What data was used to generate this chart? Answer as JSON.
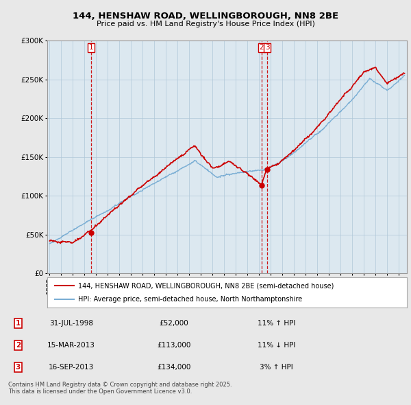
{
  "title1": "144, HENSHAW ROAD, WELLINGBOROUGH, NN8 2BE",
  "title2": "Price paid vs. HM Land Registry's House Price Index (HPI)",
  "ylim": [
    0,
    300000
  ],
  "yticks": [
    0,
    50000,
    100000,
    150000,
    200000,
    250000,
    300000
  ],
  "background_color": "#e8e8e8",
  "plot_bg_color": "#dce8f0",
  "legend_label_red": "144, HENSHAW ROAD, WELLINGBOROUGH, NN8 2BE (semi-detached house)",
  "legend_label_blue": "HPI: Average price, semi-detached house, North Northamptonshire",
  "transactions": [
    {
      "num": 1,
      "date": "31-JUL-1998",
      "price": "£52,000",
      "hpi": "11% ↑ HPI",
      "year": 1998.58
    },
    {
      "num": 2,
      "date": "15-MAR-2013",
      "price": "£113,000",
      "hpi": "11% ↓ HPI",
      "year": 2013.21
    },
    {
      "num": 3,
      "date": "16-SEP-2013",
      "price": "£134,000",
      "hpi": "3% ↑ HPI",
      "year": 2013.71
    }
  ],
  "transaction_prices": [
    52000,
    113000,
    134000
  ],
  "transaction_years": [
    1998.58,
    2013.21,
    2013.71
  ],
  "footer": "Contains HM Land Registry data © Crown copyright and database right 2025.\nThis data is licensed under the Open Government Licence v3.0.",
  "red_color": "#cc0000",
  "blue_color": "#7aaed4",
  "xlim_start": 1995,
  "xlim_end": 2025.5
}
